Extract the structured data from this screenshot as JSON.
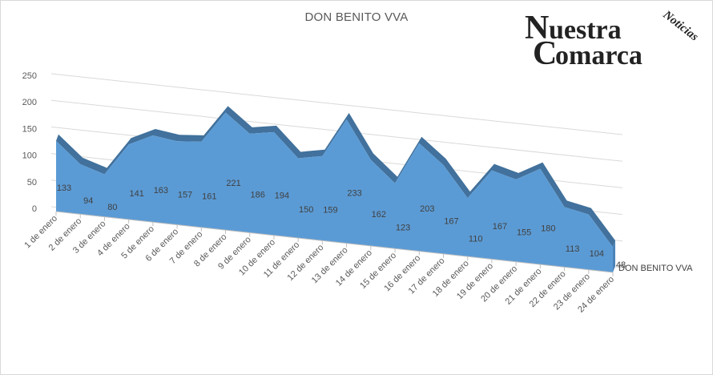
{
  "chart_data": {
    "type": "area",
    "title": "DON BENITO VVA",
    "categories": [
      "1 de enero",
      "2 de enero",
      "3 de enero",
      "4 de enero",
      "5 de enero",
      "6 de enero",
      "7 de enero",
      "8 de enero",
      "9 de enero",
      "10 de enero",
      "11 de enero",
      "12 de enero",
      "13 de enero",
      "14 de enero",
      "15 de enero",
      "16 de enero",
      "17 de enero",
      "18 de enero",
      "19 de enero",
      "20 de enero",
      "21 de enero",
      "22 de enero",
      "23 de enero",
      "24 de enero"
    ],
    "series": [
      {
        "name": "DON BENITO VVA",
        "values": [
          133,
          94,
          80,
          141,
          163,
          157,
          161,
          221,
          186,
          194,
          150,
          159,
          233,
          162,
          123,
          203,
          167,
          110,
          167,
          155,
          180,
          113,
          104,
          48
        ],
        "color": "#5b9bd5"
      }
    ],
    "yticks": [
      "0",
      "50",
      "100",
      "150",
      "200",
      "250"
    ],
    "ylim": [
      0,
      250
    ],
    "grid": true,
    "style": "3d-area"
  },
  "logo": {
    "line1": "Nuestra",
    "line2": "Comarca",
    "tag": "Noticias"
  }
}
